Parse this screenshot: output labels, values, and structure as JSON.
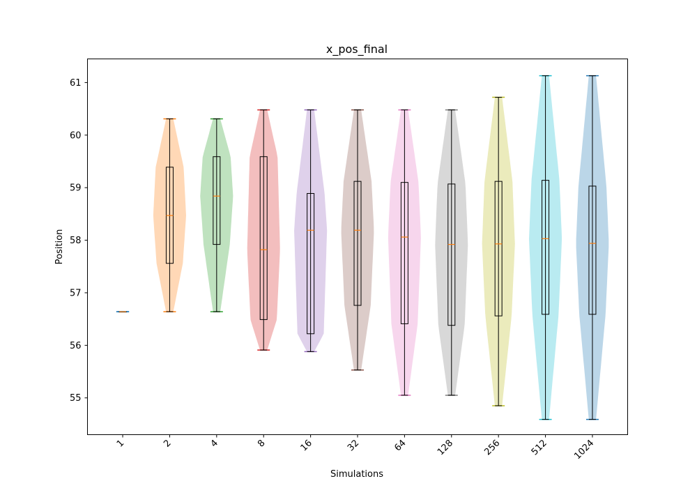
{
  "chart_data": {
    "type": "violin",
    "title": "x_pos_final",
    "xlabel": "Simulations",
    "ylabel": "Position",
    "ylim": [
      54.3,
      61.45
    ],
    "yticks": [
      55,
      56,
      57,
      58,
      59,
      60,
      61
    ],
    "categories": [
      "1",
      "2",
      "4",
      "8",
      "16",
      "32",
      "64",
      "128",
      "256",
      "512",
      "1024"
    ],
    "grid": false,
    "colors": [
      "#1f77b4",
      "#ff7f0e",
      "#2ca02c",
      "#d62728",
      "#9467bd",
      "#8c564b",
      "#e377c2",
      "#7f7f7f",
      "#bcbd22",
      "#17becf",
      "#1f77b4"
    ],
    "series": [
      {
        "category": "1",
        "min": 56.64,
        "q1": 56.64,
        "median": 56.64,
        "q3": 56.64,
        "max": 56.64
      },
      {
        "category": "2",
        "min": 56.64,
        "q1": 57.56,
        "median": 58.47,
        "q3": 59.39,
        "max": 60.31
      },
      {
        "category": "4",
        "min": 56.64,
        "q1": 57.92,
        "median": 58.84,
        "q3": 59.59,
        "max": 60.31
      },
      {
        "category": "8",
        "min": 55.91,
        "q1": 56.49,
        "median": 57.82,
        "q3": 59.59,
        "max": 60.48
      },
      {
        "category": "16",
        "min": 55.88,
        "q1": 56.22,
        "median": 58.19,
        "q3": 58.89,
        "max": 60.48
      },
      {
        "category": "32",
        "min": 55.53,
        "q1": 56.76,
        "median": 58.19,
        "q3": 59.12,
        "max": 60.48
      },
      {
        "category": "64",
        "min": 55.05,
        "q1": 56.41,
        "median": 58.06,
        "q3": 59.1,
        "max": 60.48
      },
      {
        "category": "128",
        "min": 55.05,
        "q1": 56.38,
        "median": 57.92,
        "q3": 59.07,
        "max": 60.48
      },
      {
        "category": "256",
        "min": 54.85,
        "q1": 56.56,
        "median": 57.93,
        "q3": 59.12,
        "max": 60.72
      },
      {
        "category": "512",
        "min": 54.59,
        "q1": 56.59,
        "median": 58.03,
        "q3": 59.14,
        "max": 61.13
      },
      {
        "category": "1024",
        "min": 54.59,
        "q1": 56.59,
        "median": 57.94,
        "q3": 59.03,
        "max": 61.13
      }
    ]
  }
}
